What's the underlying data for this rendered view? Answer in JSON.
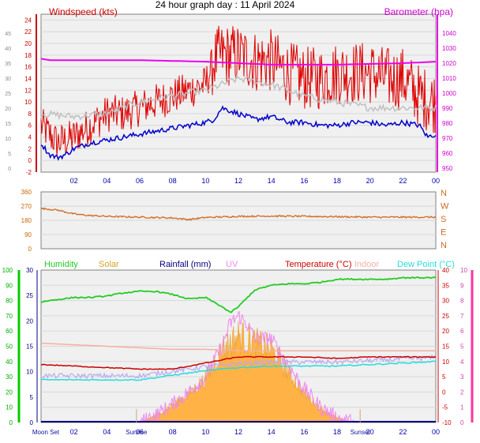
{
  "title": "24 hour graph day : 11 April 2024",
  "colors": {
    "wind": "#e00000",
    "gust_line": "#ff0000",
    "avg_wind": "#0000cc",
    "gust_grey": "#c0c0c0",
    "baro": "#ee00ee",
    "dir": "#d2691e",
    "humidity": "#22cc22",
    "solar": "#ffb347",
    "rain": "#000080",
    "uv": "#ee88ee",
    "temp": "#cc0000",
    "indoor": "#f5b0a0",
    "dew": "#22dddd",
    "hum_axis": "#00cc00",
    "temp_axis": "#ff3399",
    "sun_marker": "#d9a080",
    "moon": "#1010a0",
    "panel_bg": "#f0f0f0"
  },
  "chart_data": [
    {
      "type": "line",
      "panel": "wind_baro",
      "title": "24 hour graph day : 11 April 2024",
      "left_axis_label": "Windspeed (kts)",
      "right_axis_label": "Barometer (hpa)",
      "outer_ticks": [
        "45",
        "40",
        "35",
        "30",
        "25",
        "20",
        "15",
        "10",
        "5",
        "0"
      ],
      "ylim": [
        -2,
        25
      ],
      "yticks": [
        "24",
        "22",
        "20",
        "18",
        "16",
        "14",
        "12",
        "10",
        "8",
        "6",
        "4",
        "2",
        "0",
        "-2"
      ],
      "right_ticks": [
        "1040",
        "1030",
        "1020",
        "1010",
        "1000",
        "990",
        "980",
        "970",
        "960",
        "950"
      ],
      "xticks": [
        "02",
        "04",
        "06",
        "08",
        "10",
        "12",
        "14",
        "16",
        "18",
        "20",
        "22",
        "00"
      ],
      "series": [
        {
          "name": "Windspeed (kts)",
          "x": [
            0,
            1,
            2,
            3,
            4,
            5,
            6,
            7,
            8,
            9,
            10,
            10.5,
            11,
            12,
            13,
            14,
            15,
            16,
            17,
            18,
            19,
            20,
            21,
            22,
            23,
            24
          ],
          "values": [
            6,
            3,
            4,
            6,
            8,
            8,
            9,
            10,
            11,
            12,
            13,
            17,
            18,
            18,
            17,
            17,
            15,
            14,
            14,
            15,
            15,
            15,
            14,
            14,
            11,
            10
          ]
        },
        {
          "name": "Average wind",
          "x": [
            0,
            0.5,
            1,
            1.5,
            2,
            3,
            4,
            5,
            6,
            7,
            8,
            9,
            10,
            10.5,
            11,
            11.5,
            12,
            13,
            14,
            15,
            16,
            17,
            18,
            19,
            20,
            21,
            22,
            23,
            23.5,
            24
          ],
          "values": [
            3,
            1,
            0.5,
            1,
            2,
            3,
            3.5,
            4,
            4.5,
            5,
            5.5,
            6,
            6.5,
            7,
            9,
            8.5,
            8,
            7,
            7.5,
            6.5,
            6.5,
            6,
            6,
            6.5,
            6.5,
            6,
            6.5,
            6,
            4,
            4.5
          ]
        },
        {
          "name": "Gust average",
          "x": [
            0,
            2,
            4,
            6,
            8,
            10,
            11,
            12,
            14,
            16,
            18,
            20,
            22,
            24
          ],
          "values": [
            8,
            7.5,
            8,
            10,
            11,
            12,
            13,
            14,
            13,
            11,
            10,
            9,
            9,
            9
          ]
        },
        {
          "name": "Barometer (hpa)",
          "x": [
            0,
            0.5,
            6,
            10,
            12,
            14,
            18,
            22,
            24
          ],
          "values": [
            1023,
            1022,
            1022,
            1021,
            1020,
            1019,
            1019,
            1020,
            1021
          ]
        }
      ]
    },
    {
      "type": "line",
      "panel": "direction",
      "left_ticks": [
        "360",
        "270",
        "180",
        "90",
        "0"
      ],
      "right_ticks": [
        "N",
        "W",
        "S",
        "E",
        "N"
      ],
      "ylim": [
        0,
        360
      ],
      "series": [
        {
          "name": "Wind direction",
          "x": [
            0,
            1,
            2,
            3,
            4,
            6,
            8,
            9,
            10,
            12,
            14,
            16,
            18,
            20,
            22,
            24
          ],
          "values": [
            255,
            245,
            220,
            210,
            205,
            200,
            195,
            185,
            198,
            205,
            207,
            205,
            203,
            200,
            200,
            200
          ]
        }
      ]
    },
    {
      "type": "area",
      "panel": "weather",
      "legend": [
        "Humidity",
        "Solar",
        "Rainfall (mm)",
        "UV",
        "Temperature (°C)",
        "Indoor",
        "Dew Point (°C)"
      ],
      "hum_ticks": [
        "100",
        "90",
        "80",
        "70",
        "60",
        "50",
        "40",
        "30",
        "20",
        "10",
        "0"
      ],
      "rain_ticks": [
        "30",
        "25",
        "20",
        "15",
        "10",
        "5",
        "0"
      ],
      "temp_ticks": [
        "40",
        "35",
        "30",
        "25",
        "20",
        "15",
        "10",
        "5",
        "0",
        "-5",
        "-10"
      ],
      "uv_ticks": [
        "10",
        "9",
        "8",
        "7",
        "6",
        "5",
        "4",
        "3",
        "2",
        "1",
        "0"
      ],
      "xticks": [
        "02",
        "04",
        "06",
        "08",
        "10",
        "12",
        "14",
        "16",
        "18",
        "20",
        "22",
        "00"
      ],
      "events": [
        {
          "label": "Moon Set",
          "x": 0
        },
        {
          "label": "Sunrise",
          "x": 5.8
        },
        {
          "label": "Sunset",
          "x": 19.4
        }
      ],
      "ylim": [
        0,
        100
      ],
      "series": [
        {
          "name": "Humidity",
          "x": [
            0,
            0.5,
            2,
            3,
            4,
            5,
            6,
            7,
            8,
            9,
            10,
            11,
            11.5,
            12,
            13,
            14,
            15,
            16,
            17,
            18,
            19,
            20,
            21,
            22,
            23,
            24
          ],
          "values": [
            79,
            80,
            82,
            82,
            83,
            85,
            86,
            86,
            84,
            81,
            82,
            76,
            72,
            76,
            87,
            90,
            91,
            91,
            92,
            94,
            94,
            94,
            94,
            95,
            95,
            95
          ]
        },
        {
          "name": "Temperature (°C)",
          "x": [
            0,
            2,
            4,
            6,
            8,
            10,
            11,
            12,
            14,
            16,
            18,
            20,
            22,
            24
          ],
          "values": [
            9,
            8.5,
            8,
            7.5,
            7.5,
            9.5,
            10.5,
            11.5,
            11.5,
            11.5,
            11,
            11.5,
            11.5,
            11.5
          ]
        },
        {
          "name": "Dew Point (°C)",
          "x": [
            0,
            2,
            4,
            6,
            8,
            10,
            12,
            14,
            16,
            18,
            20,
            22,
            24
          ],
          "values": [
            4,
            4,
            4,
            4,
            5.5,
            7,
            8,
            8.5,
            8.5,
            8.5,
            9,
            9.5,
            10
          ]
        },
        {
          "name": "Indoor",
          "x": [
            0,
            2,
            4,
            6,
            8,
            10,
            12,
            14,
            16,
            18,
            20,
            22,
            24
          ],
          "values": [
            16,
            15.5,
            15,
            14.5,
            14,
            14,
            13.5,
            13.5,
            13.5,
            13.5,
            13.5,
            13.5,
            13.5
          ]
        },
        {
          "name": "Solar",
          "x": [
            6,
            7,
            8,
            9,
            10,
            11,
            12,
            13,
            14,
            15,
            16,
            17,
            18,
            19
          ],
          "values": [
            0,
            0.5,
            1.2,
            2,
            3,
            5,
            6,
            5.5,
            5,
            3.5,
            2,
            1,
            0.3,
            0
          ]
        },
        {
          "name": "UV",
          "x": [
            6,
            7,
            8,
            9,
            10,
            11,
            11.5,
            12,
            12.5,
            13,
            14,
            15,
            16,
            17,
            18,
            19
          ],
          "values": [
            0,
            0.5,
            1.2,
            2,
            3,
            5,
            6.5,
            7,
            6.5,
            5.5,
            5.5,
            3.8,
            2.2,
            1,
            0.3,
            0
          ]
        },
        {
          "name": "Rainfall (mm)",
          "x": [
            0,
            24
          ],
          "values": [
            0,
            0
          ]
        }
      ]
    }
  ]
}
